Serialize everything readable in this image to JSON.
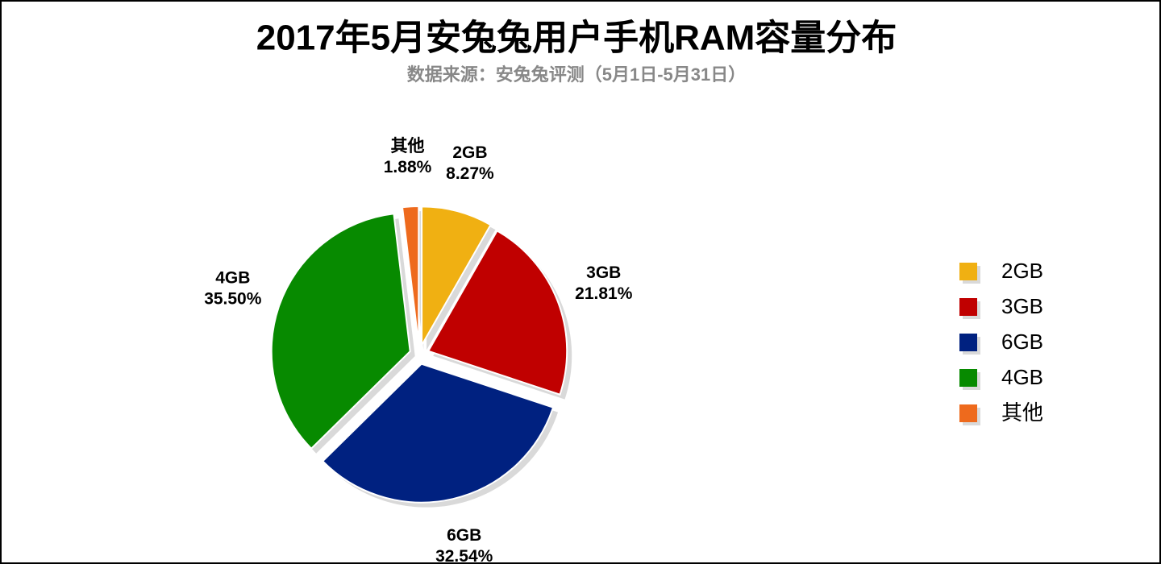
{
  "chart_data": {
    "type": "pie",
    "title": "2017年5月安兔兔用户手机RAM容量分布",
    "subtitle": "数据来源：安兔兔评测（5月1日-5月31日）",
    "categories": [
      "2GB",
      "3GB",
      "6GB",
      "4GB",
      "其他"
    ],
    "values": [
      8.27,
      21.81,
      32.54,
      35.5,
      1.88
    ],
    "value_labels": [
      "8.27%",
      "21.81%",
      "32.54%",
      "35.50%",
      "1.88%"
    ],
    "colors": [
      "#f0b012",
      "#c00000",
      "#002180",
      "#078a00",
      "#ee6a1d"
    ],
    "legend": "right"
  }
}
